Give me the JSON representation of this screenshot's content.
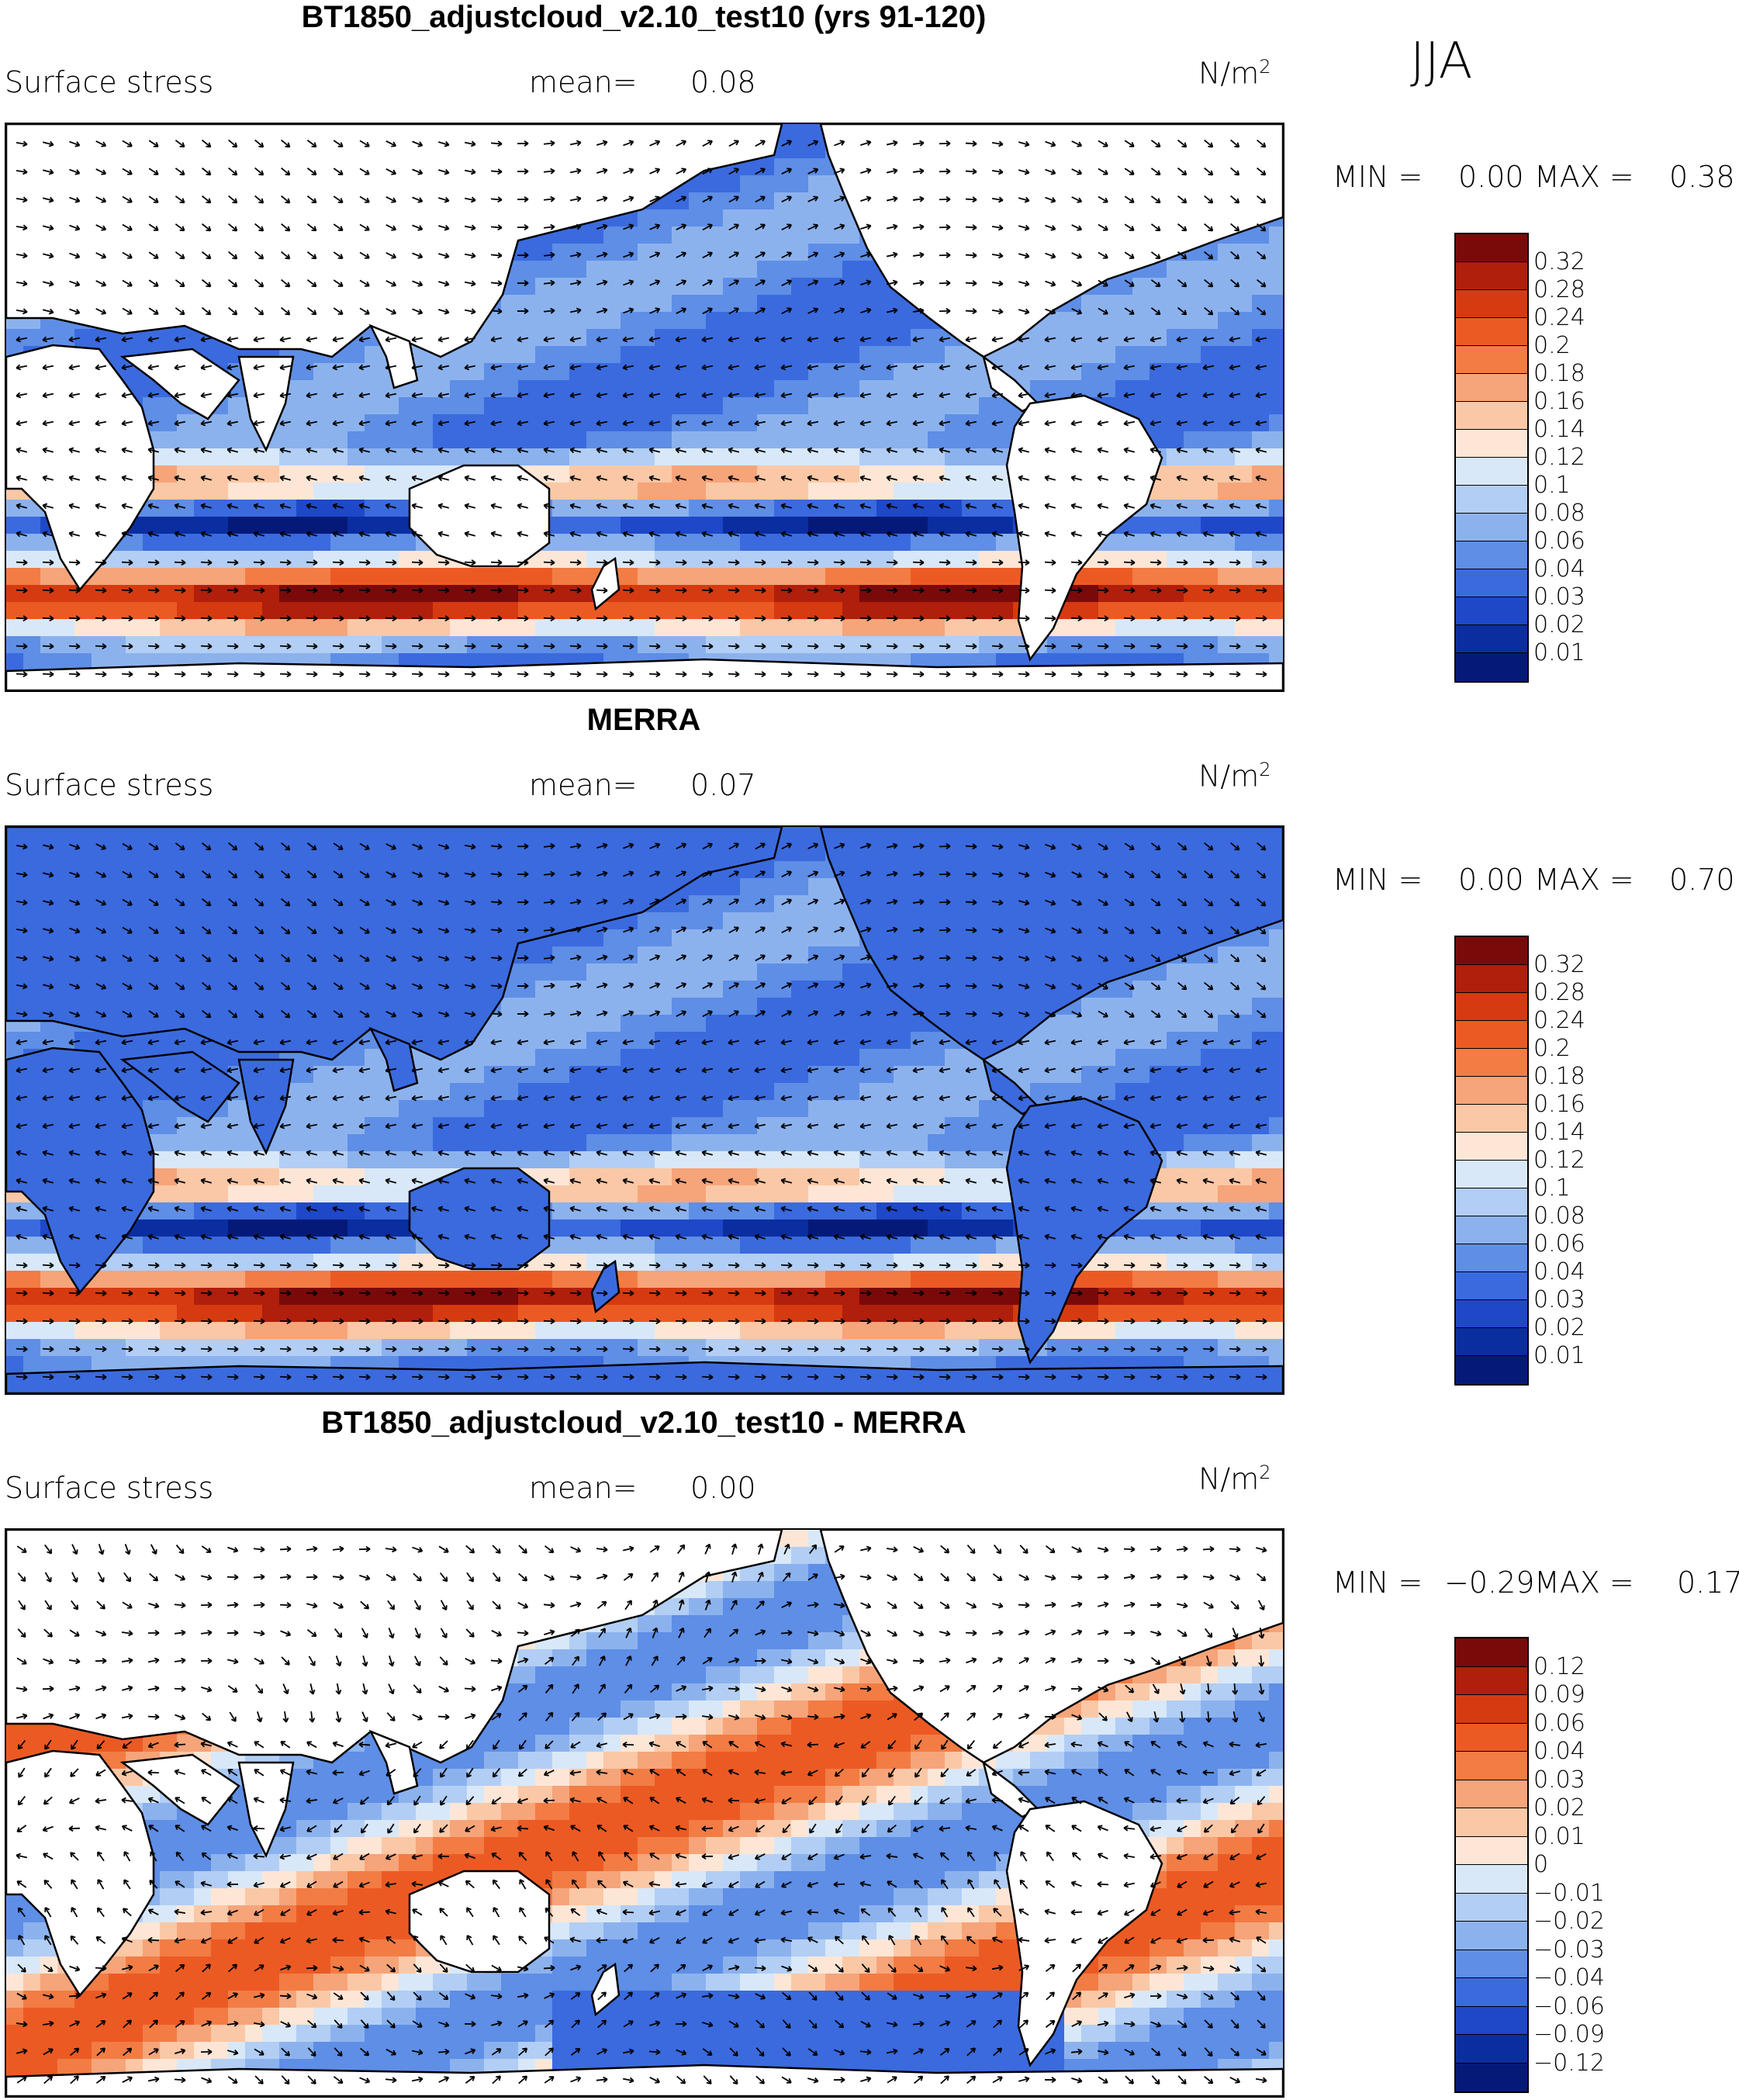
{
  "season": "JJA",
  "units_base": "N/m",
  "units_exp": "2",
  "panels": [
    {
      "title": "BT1850_adjustcloud_v2.10_test10 (yrs 91-120)",
      "variable": "Surface stress",
      "mean_label": "mean=",
      "mean_value": "0.08",
      "min_label": "MIN =",
      "min_value": "0.00",
      "max_label": "MAX =",
      "max_value": "0.38",
      "colorbar": {
        "labels": [
          "0.32",
          "0.28",
          "0.24",
          "0.2",
          "0.18",
          "0.16",
          "0.14",
          "0.12",
          "0.1",
          "0.08",
          "0.06",
          "0.04",
          "0.03",
          "0.02",
          "0.01"
        ],
        "colors": [
          "#7a0a0a",
          "#b01e0c",
          "#d63a10",
          "#ec5a24",
          "#f27c44",
          "#f6a47a",
          "#fac8a6",
          "#fde6d6",
          "#d8e8f8",
          "#b2cef4",
          "#8cb2ee",
          "#5e8ee6",
          "#3a6ade",
          "#1e48c8",
          "#0a2ea0",
          "#051a78"
        ]
      }
    },
    {
      "title": "MERRA",
      "variable": "Surface stress",
      "mean_label": "mean=",
      "mean_value": "0.07",
      "min_label": "MIN =",
      "min_value": "0.00",
      "max_label": "MAX =",
      "max_value": "0.70",
      "colorbar": {
        "labels": [
          "0.32",
          "0.28",
          "0.24",
          "0.2",
          "0.18",
          "0.16",
          "0.14",
          "0.12",
          "0.1",
          "0.08",
          "0.06",
          "0.04",
          "0.03",
          "0.02",
          "0.01"
        ],
        "colors": [
          "#7a0a0a",
          "#b01e0c",
          "#d63a10",
          "#ec5a24",
          "#f27c44",
          "#f6a47a",
          "#fac8a6",
          "#fde6d6",
          "#d8e8f8",
          "#b2cef4",
          "#8cb2ee",
          "#5e8ee6",
          "#3a6ade",
          "#1e48c8",
          "#0a2ea0",
          "#051a78"
        ]
      }
    },
    {
      "title": "BT1850_adjustcloud_v2.10_test10 - MERRA",
      "variable": "Surface stress",
      "mean_label": "mean=",
      "mean_value": "0.00",
      "min_label": "MIN =",
      "min_value": "−0.29",
      "max_label": "MAX =",
      "max_value": "0.17",
      "colorbar": {
        "labels": [
          "0.12",
          "0.09",
          "0.06",
          "0.04",
          "0.03",
          "0.02",
          "0.01",
          "0",
          "−0.01",
          "−0.02",
          "−0.03",
          "−0.04",
          "−0.06",
          "−0.09",
          "−0.12"
        ],
        "colors": [
          "#7a0a0a",
          "#b01e0c",
          "#d63a10",
          "#ec5a24",
          "#f27c44",
          "#f6a47a",
          "#fac8a6",
          "#fde6d6",
          "#d8e8f8",
          "#b2cef4",
          "#8cb2ee",
          "#5e8ee6",
          "#3a6ade",
          "#1e48c8",
          "#0a2ea0",
          "#051a78"
        ]
      }
    }
  ]
}
